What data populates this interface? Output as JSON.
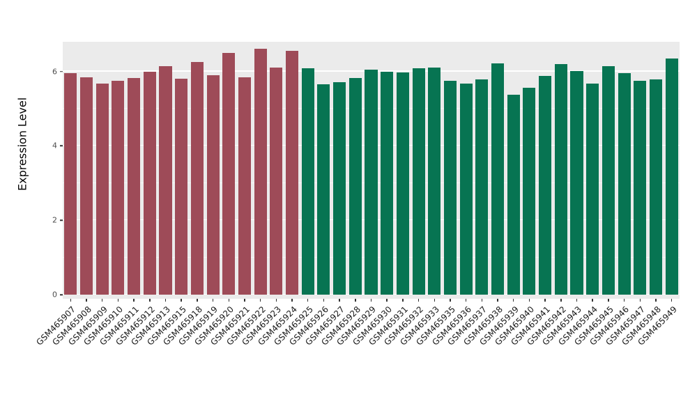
{
  "figure": {
    "ylabel": "Expression Level"
  },
  "chart_data": {
    "type": "bar",
    "title": "",
    "xlabel": "",
    "ylabel": "Expression Level",
    "ylim": [
      0,
      6.8
    ],
    "yticks": [
      0,
      2,
      4,
      6
    ],
    "ytick_labels": [
      "0",
      "2",
      "4",
      "6"
    ],
    "yticks_minor": [
      1,
      3,
      5
    ],
    "grid": true,
    "legend_position": "none",
    "panel_background": "#EBEBEB",
    "gridline_color": "#FFFFFF",
    "categories": [
      "GSM465907",
      "GSM465908",
      "GSM465909",
      "GSM465910",
      "GSM465911",
      "GSM465912",
      "GSM465913",
      "GSM465915",
      "GSM465918",
      "GSM465919",
      "GSM465920",
      "GSM465921",
      "GSM465922",
      "GSM465923",
      "GSM465924",
      "GSM465925",
      "GSM465926",
      "GSM465927",
      "GSM465928",
      "GSM465929",
      "GSM465930",
      "GSM465931",
      "GSM465932",
      "GSM465933",
      "GSM465935",
      "GSM465936",
      "GSM465937",
      "GSM465938",
      "GSM465939",
      "GSM465940",
      "GSM465941",
      "GSM465942",
      "GSM465943",
      "GSM465944",
      "GSM465945",
      "GSM465946",
      "GSM465947",
      "GSM465948",
      "GSM465949"
    ],
    "values": [
      5.95,
      5.85,
      5.67,
      5.76,
      5.83,
      6.0,
      6.15,
      5.8,
      6.25,
      5.9,
      6.5,
      5.85,
      6.62,
      6.1,
      6.55,
      6.08,
      5.65,
      5.72,
      5.82,
      6.05,
      6.0,
      5.97,
      6.08,
      6.1,
      5.75,
      5.68,
      5.78,
      6.22,
      5.38,
      5.57,
      5.88,
      6.2,
      6.02,
      5.68,
      6.15,
      5.95,
      5.75,
      5.78,
      6.35
    ],
    "groups": [
      "group1",
      "group1",
      "group1",
      "group1",
      "group1",
      "group1",
      "group1",
      "group1",
      "group1",
      "group1",
      "group1",
      "group1",
      "group1",
      "group1",
      "group1",
      "group2",
      "group2",
      "group2",
      "group2",
      "group2",
      "group2",
      "group2",
      "group2",
      "group2",
      "group2",
      "group2",
      "group2",
      "group2",
      "group2",
      "group2",
      "group2",
      "group2",
      "group2",
      "group2",
      "group2",
      "group2",
      "group2",
      "group2",
      "group2"
    ],
    "group_colors": {
      "group1": "#9E4B58",
      "group2": "#077452"
    }
  }
}
